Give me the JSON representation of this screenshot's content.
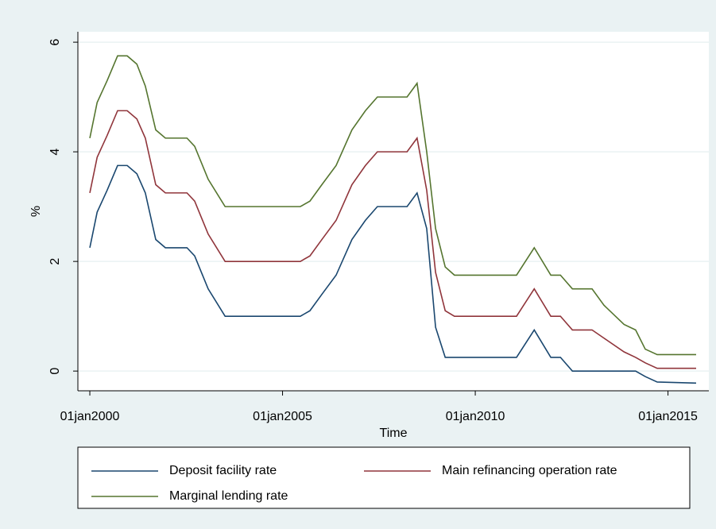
{
  "chart_data": {
    "type": "line",
    "y_label": "%",
    "x_label": "Time",
    "x": [
      2000.0,
      2000.19,
      2000.45,
      2000.72,
      2000.97,
      2001.22,
      2001.44,
      2001.71,
      2001.96,
      2002.52,
      2002.72,
      2003.07,
      2003.51,
      2005.46,
      2005.71,
      2006.02,
      2006.39,
      2006.8,
      2007.15,
      2007.46,
      2008.23,
      2008.49,
      2008.74,
      2008.97,
      2009.22,
      2009.46,
      2011.07,
      2011.53,
      2011.96,
      2012.21,
      2012.52,
      2013.03,
      2013.34,
      2013.86,
      2014.16,
      2014.41,
      2014.72,
      2015.73
    ],
    "series": [
      {
        "name": "Deposit facility rate",
        "color": "#1a476f",
        "values": [
          2.25,
          2.9,
          3.3,
          3.75,
          3.75,
          3.6,
          3.25,
          2.4,
          2.25,
          2.25,
          2.1,
          1.5,
          1.0,
          1.0,
          1.1,
          1.4,
          1.75,
          2.4,
          2.75,
          3.0,
          3.0,
          3.25,
          2.6,
          0.8,
          0.25,
          0.25,
          0.25,
          0.75,
          0.25,
          0.25,
          0.0,
          0.0,
          0.0,
          0.0,
          0.0,
          -0.1,
          -0.2,
          -0.22
        ]
      },
      {
        "name": "Main refinancing operation rate",
        "color": "#90353b",
        "values": [
          3.25,
          3.9,
          4.3,
          4.75,
          4.75,
          4.6,
          4.25,
          3.4,
          3.25,
          3.25,
          3.1,
          2.5,
          2.0,
          2.0,
          2.1,
          2.4,
          2.75,
          3.4,
          3.75,
          4.0,
          4.0,
          4.25,
          3.3,
          1.8,
          1.1,
          1.0,
          1.0,
          1.5,
          1.0,
          1.0,
          0.75,
          0.75,
          0.6,
          0.35,
          0.25,
          0.15,
          0.05,
          0.05
        ]
      },
      {
        "name": "Marginal lending rate",
        "color": "#55752f",
        "values": [
          4.25,
          4.9,
          5.3,
          5.75,
          5.75,
          5.6,
          5.2,
          4.4,
          4.25,
          4.25,
          4.1,
          3.5,
          3.0,
          3.0,
          3.1,
          3.4,
          3.75,
          4.4,
          4.75,
          5.0,
          5.0,
          5.25,
          4.0,
          2.6,
          1.9,
          1.75,
          1.75,
          2.25,
          1.75,
          1.75,
          1.5,
          1.5,
          1.2,
          0.85,
          0.75,
          0.4,
          0.3,
          0.3
        ]
      }
    ],
    "xlim": [
      1999.69,
      2016.06
    ],
    "xticks": [
      {
        "value": 2000,
        "label": "01jan2000"
      },
      {
        "value": 2005,
        "label": "01jan2005"
      },
      {
        "value": 2010,
        "label": "01jan2010"
      },
      {
        "value": 2015,
        "label": "01jan2015"
      }
    ],
    "ylim": [
      -0.36,
      6.19
    ],
    "yticks": [
      0,
      2,
      4,
      6
    ],
    "grid": true,
    "legend": "bottom"
  }
}
